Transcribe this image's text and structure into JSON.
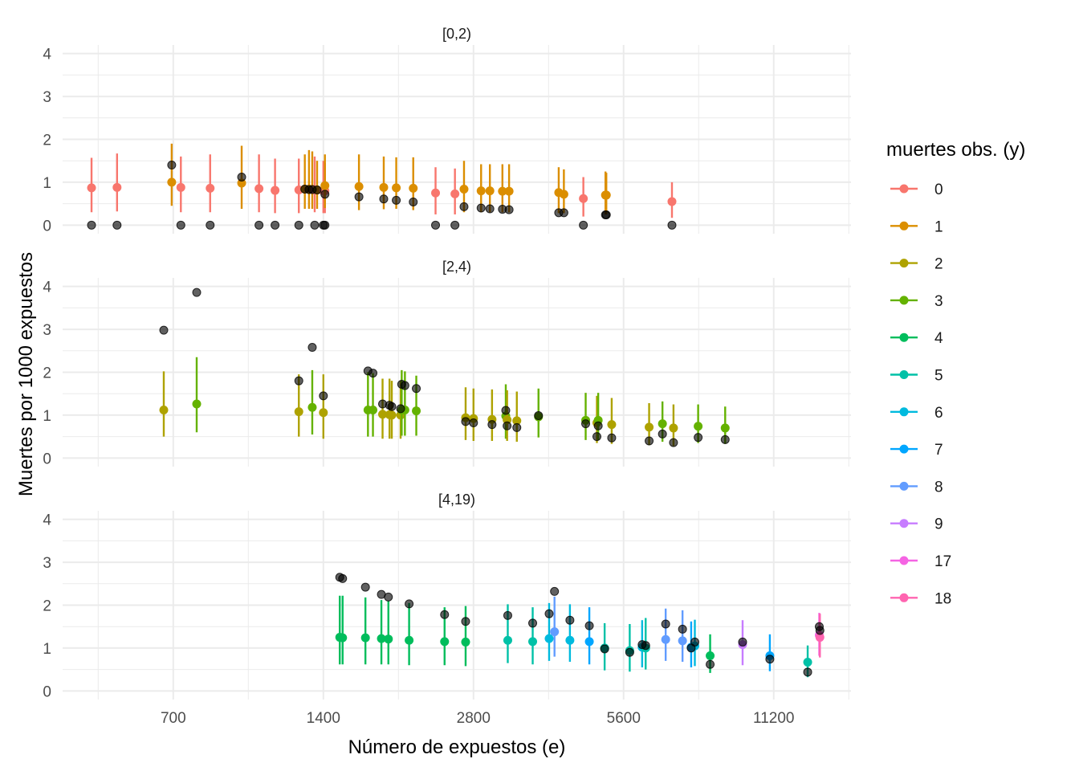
{
  "chart_data": {
    "type": "scatter",
    "xlabel": "Número de expuestos (e)",
    "ylabel": "Muertes por 1000 expuestos",
    "x_scale": "log2",
    "x_ticks": [
      700,
      1400,
      2800,
      5600,
      11200
    ],
    "x_tick_labels": [
      "700",
      "1400",
      "2800",
      "5600",
      "11200"
    ],
    "xlim": [
      420,
      16000
    ],
    "y_ticks": [
      0,
      1,
      2,
      3,
      4
    ],
    "y_tick_labels": [
      "0",
      "1",
      "2",
      "3",
      "4"
    ],
    "ylim": [
      -0.2,
      4.2
    ],
    "grid": true,
    "legend": {
      "title": "muertes obs. (y)",
      "position": "right",
      "entries": [
        {
          "label": "0",
          "color": "#F8766D"
        },
        {
          "label": "1",
          "color": "#DB8E00"
        },
        {
          "label": "2",
          "color": "#AEA200"
        },
        {
          "label": "3",
          "color": "#64B200"
        },
        {
          "label": "4",
          "color": "#00BD5C"
        },
        {
          "label": "5",
          "color": "#00C1A7"
        },
        {
          "label": "6",
          "color": "#00BADE"
        },
        {
          "label": "7",
          "color": "#00A6FF"
        },
        {
          "label": "8",
          "color": "#619CFF"
        },
        {
          "label": "9",
          "color": "#C77CFF"
        },
        {
          "label": "17",
          "color": "#F564E3"
        },
        {
          "label": "18",
          "color": "#FF64B0"
        }
      ]
    },
    "panels": [
      {
        "title": "[0,2)",
        "observed_color": "#000000",
        "points": [
          {
            "e": 480,
            "y": "0",
            "obs": 0,
            "est": 0.87,
            "lo": 0.3,
            "hi": 1.57
          },
          {
            "e": 540,
            "y": "0",
            "obs": 0,
            "est": 0.88,
            "lo": 0.32,
            "hi": 1.67
          },
          {
            "e": 695,
            "y": "1",
            "obs": 1.4,
            "est": 1.0,
            "lo": 0.45,
            "hi": 1.9
          },
          {
            "e": 725,
            "y": "0",
            "obs": 0,
            "est": 0.88,
            "lo": 0.3,
            "hi": 1.6
          },
          {
            "e": 830,
            "y": "0",
            "obs": 0,
            "est": 0.86,
            "lo": 0.3,
            "hi": 1.65
          },
          {
            "e": 960,
            "y": "1",
            "obs": 1.12,
            "est": 0.98,
            "lo": 0.38,
            "hi": 1.85
          },
          {
            "e": 1040,
            "y": "0",
            "obs": 0,
            "est": 0.85,
            "lo": 0.3,
            "hi": 1.65
          },
          {
            "e": 1120,
            "y": "0",
            "obs": 0,
            "est": 0.81,
            "lo": 0.28,
            "hi": 1.55
          },
          {
            "e": 1250,
            "y": "0",
            "obs": 0,
            "est": 0.82,
            "lo": 0.28,
            "hi": 1.55
          },
          {
            "e": 1285,
            "y": "1",
            "obs": 0.84,
            "est": 0.84,
            "lo": 0.38,
            "hi": 1.65
          },
          {
            "e": 1310,
            "y": "1",
            "obs": 0.83,
            "est": 0.84,
            "lo": 0.38,
            "hi": 1.75
          },
          {
            "e": 1330,
            "y": "1",
            "obs": 0.83,
            "est": 0.83,
            "lo": 0.38,
            "hi": 1.72
          },
          {
            "e": 1345,
            "y": "0",
            "obs": 0,
            "est": 0.82,
            "lo": 0.3,
            "hi": 1.6
          },
          {
            "e": 1360,
            "y": "1",
            "obs": 0.82,
            "est": 0.82,
            "lo": 0.38,
            "hi": 1.5
          },
          {
            "e": 1400,
            "y": "0",
            "obs": 0,
            "est": 0.8,
            "lo": 0.28,
            "hi": 1.5
          },
          {
            "e": 1410,
            "y": "0",
            "obs": 0,
            "est": 0.8,
            "lo": 0.28,
            "hi": 1.45
          },
          {
            "e": 1410,
            "y": "1",
            "obs": 0.72,
            "est": 0.92,
            "lo": 0.4,
            "hi": 1.65
          },
          {
            "e": 1650,
            "y": "1",
            "obs": 0.66,
            "est": 0.9,
            "lo": 0.35,
            "hi": 1.65
          },
          {
            "e": 1850,
            "y": "1",
            "obs": 0.61,
            "est": 0.88,
            "lo": 0.37,
            "hi": 1.6
          },
          {
            "e": 1960,
            "y": "1",
            "obs": 0.58,
            "est": 0.87,
            "lo": 0.38,
            "hi": 1.58
          },
          {
            "e": 2120,
            "y": "1",
            "obs": 0.54,
            "est": 0.86,
            "lo": 0.35,
            "hi": 1.58
          },
          {
            "e": 2350,
            "y": "0",
            "obs": 0,
            "est": 0.75,
            "lo": 0.25,
            "hi": 1.35
          },
          {
            "e": 2570,
            "y": "0",
            "obs": 0,
            "est": 0.73,
            "lo": 0.25,
            "hi": 1.32
          },
          {
            "e": 2680,
            "y": "1",
            "obs": 0.43,
            "est": 0.84,
            "lo": 0.3,
            "hi": 1.5
          },
          {
            "e": 2900,
            "y": "1",
            "obs": 0.4,
            "est": 0.8,
            "lo": 0.3,
            "hi": 1.42
          },
          {
            "e": 3020,
            "y": "1",
            "obs": 0.38,
            "est": 0.8,
            "lo": 0.3,
            "hi": 1.42
          },
          {
            "e": 3200,
            "y": "1",
            "obs": 0.37,
            "est": 0.79,
            "lo": 0.3,
            "hi": 1.42
          },
          {
            "e": 3300,
            "y": "1",
            "obs": 0.36,
            "est": 0.79,
            "lo": 0.3,
            "hi": 1.42
          },
          {
            "e": 4150,
            "y": "1",
            "obs": 0.29,
            "est": 0.76,
            "lo": 0.28,
            "hi": 1.35
          },
          {
            "e": 4250,
            "y": "1",
            "obs": 0.29,
            "est": 0.72,
            "lo": 0.28,
            "hi": 1.3
          },
          {
            "e": 4650,
            "y": "0",
            "obs": 0,
            "est": 0.62,
            "lo": 0.2,
            "hi": 1.12
          },
          {
            "e": 5150,
            "y": "1",
            "obs": 0.24,
            "est": 0.7,
            "lo": 0.25,
            "hi": 1.25
          },
          {
            "e": 5170,
            "y": "1",
            "obs": 0.24,
            "est": 0.7,
            "lo": 0.25,
            "hi": 1.22
          },
          {
            "e": 7000,
            "y": "0",
            "obs": 0,
            "est": 0.55,
            "lo": 0.17,
            "hi": 1.0
          }
        ]
      },
      {
        "title": "[2,4)",
        "observed_color": "#000000",
        "points": [
          {
            "e": 670,
            "y": "2",
            "obs": 2.98,
            "est": 1.12,
            "lo": 0.5,
            "hi": 2.02
          },
          {
            "e": 780,
            "y": "3",
            "obs": 3.86,
            "est": 1.26,
            "lo": 0.6,
            "hi": 2.35
          },
          {
            "e": 1250,
            "y": "2",
            "obs": 1.8,
            "est": 1.08,
            "lo": 0.5,
            "hi": 1.95
          },
          {
            "e": 1330,
            "y": "3",
            "obs": 2.58,
            "est": 1.18,
            "lo": 0.55,
            "hi": 2.05
          },
          {
            "e": 1400,
            "y": "2",
            "obs": 1.45,
            "est": 1.06,
            "lo": 0.45,
            "hi": 1.95
          },
          {
            "e": 1720,
            "y": "3",
            "obs": 2.03,
            "est": 1.12,
            "lo": 0.5,
            "hi": 2.0
          },
          {
            "e": 1760,
            "y": "3",
            "obs": 1.98,
            "est": 1.12,
            "lo": 0.5,
            "hi": 1.98
          },
          {
            "e": 1840,
            "y": "2",
            "obs": 1.26,
            "est": 1.02,
            "lo": 0.45,
            "hi": 1.85
          },
          {
            "e": 1900,
            "y": "2",
            "obs": 1.23,
            "est": 1.01,
            "lo": 0.45,
            "hi": 1.85
          },
          {
            "e": 1920,
            "y": "2",
            "obs": 1.2,
            "est": 1.0,
            "lo": 0.45,
            "hi": 1.8
          },
          {
            "e": 2000,
            "y": "2",
            "obs": 1.15,
            "est": 1.0,
            "lo": 0.45,
            "hi": 1.8
          },
          {
            "e": 2010,
            "y": "3",
            "obs": 1.72,
            "est": 1.12,
            "lo": 0.52,
            "hi": 2.05
          },
          {
            "e": 2040,
            "y": "3",
            "obs": 1.69,
            "est": 1.12,
            "lo": 0.52,
            "hi": 2.02
          },
          {
            "e": 2150,
            "y": "3",
            "obs": 1.62,
            "est": 1.1,
            "lo": 0.52,
            "hi": 1.92
          },
          {
            "e": 2700,
            "y": "2",
            "obs": 0.85,
            "est": 0.94,
            "lo": 0.42,
            "hi": 1.65
          },
          {
            "e": 2800,
            "y": "2",
            "obs": 0.82,
            "est": 0.92,
            "lo": 0.4,
            "hi": 1.62
          },
          {
            "e": 3050,
            "y": "2",
            "obs": 0.78,
            "est": 0.9,
            "lo": 0.4,
            "hi": 1.6
          },
          {
            "e": 3250,
            "y": "3",
            "obs": 1.11,
            "est": 0.98,
            "lo": 0.45,
            "hi": 1.72
          },
          {
            "e": 3270,
            "y": "2",
            "obs": 0.75,
            "est": 0.89,
            "lo": 0.4,
            "hi": 1.58
          },
          {
            "e": 3420,
            "y": "2",
            "obs": 0.71,
            "est": 0.87,
            "lo": 0.38,
            "hi": 1.55
          },
          {
            "e": 3780,
            "y": "3",
            "obs": 0.99,
            "est": 0.96,
            "lo": 0.48,
            "hi": 1.62
          },
          {
            "e": 4700,
            "y": "3",
            "obs": 0.8,
            "est": 0.88,
            "lo": 0.42,
            "hi": 1.52
          },
          {
            "e": 4950,
            "y": "2",
            "obs": 0.5,
            "est": 0.82,
            "lo": 0.35,
            "hi": 1.45
          },
          {
            "e": 4980,
            "y": "3",
            "obs": 0.75,
            "est": 0.88,
            "lo": 0.42,
            "hi": 1.52
          },
          {
            "e": 5300,
            "y": "2",
            "obs": 0.47,
            "est": 0.78,
            "lo": 0.33,
            "hi": 1.4
          },
          {
            "e": 6300,
            "y": "2",
            "obs": 0.4,
            "est": 0.72,
            "lo": 0.3,
            "hi": 1.28
          },
          {
            "e": 6700,
            "y": "3",
            "obs": 0.56,
            "est": 0.8,
            "lo": 0.38,
            "hi": 1.32
          },
          {
            "e": 7050,
            "y": "2",
            "obs": 0.36,
            "est": 0.7,
            "lo": 0.28,
            "hi": 1.25
          },
          {
            "e": 7900,
            "y": "3",
            "obs": 0.48,
            "est": 0.74,
            "lo": 0.35,
            "hi": 1.25
          },
          {
            "e": 8950,
            "y": "3",
            "obs": 0.43,
            "est": 0.7,
            "lo": 0.33,
            "hi": 1.2
          }
        ]
      },
      {
        "title": "[4,19)",
        "observed_color": "#000000",
        "points": [
          {
            "e": 1510,
            "y": "4",
            "obs": 2.65,
            "est": 1.25,
            "lo": 0.62,
            "hi": 2.22
          },
          {
            "e": 1530,
            "y": "4",
            "obs": 2.62,
            "est": 1.24,
            "lo": 0.62,
            "hi": 2.22
          },
          {
            "e": 1700,
            "y": "4",
            "obs": 2.42,
            "est": 1.24,
            "lo": 0.62,
            "hi": 2.18
          },
          {
            "e": 1830,
            "y": "4",
            "obs": 2.25,
            "est": 1.22,
            "lo": 0.62,
            "hi": 2.12
          },
          {
            "e": 1890,
            "y": "4",
            "obs": 2.19,
            "est": 1.21,
            "lo": 0.62,
            "hi": 2.1
          },
          {
            "e": 2080,
            "y": "4",
            "obs": 2.03,
            "est": 1.18,
            "lo": 0.6,
            "hi": 2.05
          },
          {
            "e": 2450,
            "y": "4",
            "obs": 1.78,
            "est": 1.15,
            "lo": 0.6,
            "hi": 1.95
          },
          {
            "e": 2700,
            "y": "4",
            "obs": 1.62,
            "est": 1.14,
            "lo": 0.58,
            "hi": 1.98
          },
          {
            "e": 3280,
            "y": "5",
            "obs": 1.76,
            "est": 1.18,
            "lo": 0.65,
            "hi": 2.02
          },
          {
            "e": 3680,
            "y": "5",
            "obs": 1.58,
            "est": 1.15,
            "lo": 0.62,
            "hi": 1.95
          },
          {
            "e": 3970,
            "y": "6",
            "obs": 1.8,
            "est": 1.22,
            "lo": 0.7,
            "hi": 2.05
          },
          {
            "e": 4070,
            "y": "8",
            "obs": 2.32,
            "est": 1.38,
            "lo": 0.8,
            "hi": 2.2
          },
          {
            "e": 4370,
            "y": "6",
            "obs": 1.65,
            "est": 1.18,
            "lo": 0.68,
            "hi": 2.02
          },
          {
            "e": 4780,
            "y": "7",
            "obs": 1.52,
            "est": 1.15,
            "lo": 0.62,
            "hi": 1.95
          },
          {
            "e": 5130,
            "y": "5",
            "obs": 0.98,
            "est": 1.0,
            "lo": 0.48,
            "hi": 1.58
          },
          {
            "e": 5760,
            "y": "5",
            "obs": 0.9,
            "est": 0.94,
            "lo": 0.45,
            "hi": 1.56
          },
          {
            "e": 6100,
            "y": "6",
            "obs": 1.08,
            "est": 1.02,
            "lo": 0.55,
            "hi": 1.65
          },
          {
            "e": 6200,
            "y": "5",
            "obs": 1.06,
            "est": 1.0,
            "lo": 0.5,
            "hi": 1.7
          },
          {
            "e": 6800,
            "y": "8",
            "obs": 1.56,
            "est": 1.2,
            "lo": 0.7,
            "hi": 1.92
          },
          {
            "e": 7350,
            "y": "8",
            "obs": 1.44,
            "est": 1.17,
            "lo": 0.68,
            "hi": 1.88
          },
          {
            "e": 7650,
            "y": "7",
            "obs": 1.0,
            "est": 1.02,
            "lo": 0.55,
            "hi": 1.62
          },
          {
            "e": 7780,
            "y": "6",
            "obs": 1.14,
            "est": 1.05,
            "lo": 0.58,
            "hi": 1.66
          },
          {
            "e": 8350,
            "y": "4",
            "obs": 0.62,
            "est": 0.82,
            "lo": 0.42,
            "hi": 1.32
          },
          {
            "e": 9700,
            "y": "9",
            "obs": 1.14,
            "est": 1.08,
            "lo": 0.6,
            "hi": 1.65
          },
          {
            "e": 11000,
            "y": "7",
            "obs": 0.74,
            "est": 0.82,
            "lo": 0.46,
            "hi": 1.32
          },
          {
            "e": 13100,
            "y": "5",
            "obs": 0.44,
            "est": 0.67,
            "lo": 0.32,
            "hi": 1.06
          },
          {
            "e": 13820,
            "y": "17",
            "obs": 1.5,
            "est": 1.3,
            "lo": 0.82,
            "hi": 1.82
          },
          {
            "e": 13860,
            "y": "18",
            "obs": 1.41,
            "est": 1.25,
            "lo": 0.78,
            "hi": 1.8
          }
        ]
      }
    ]
  }
}
